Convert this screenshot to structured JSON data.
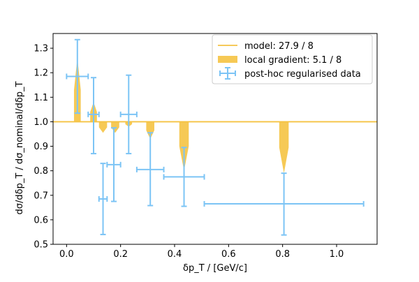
{
  "chart_data": {
    "type": "line",
    "xlabel": "δp_T / [GeV/c]",
    "ylabel": "dσ/dδp_T / dσ_nominal/dδp_T",
    "xlim": [
      -0.05,
      1.15
    ],
    "ylim": [
      0.5,
      1.36
    ],
    "x_ticks": [
      0.0,
      0.2,
      0.4,
      0.6,
      0.8,
      1.0
    ],
    "x_tick_labels": [
      "0.0",
      "0.2",
      "0.4",
      "0.6",
      "0.8",
      "1.0"
    ],
    "y_ticks": [
      0.5,
      0.6,
      0.7,
      0.8,
      0.9,
      1.0,
      1.1,
      1.2,
      1.3
    ],
    "y_tick_labels": [
      "0.5",
      "0.6",
      "0.7",
      "0.8",
      "0.9",
      "1.0",
      "1.1",
      "1.2",
      "1.3"
    ],
    "grid": false,
    "legend_position": "top-right",
    "legend": [
      {
        "label": "model: 27.9 / 8",
        "kind": "line",
        "color": "#f5c342"
      },
      {
        "label": "local gradient: 5.1 / 8",
        "kind": "fill",
        "color": "#f5c342"
      },
      {
        "label": "post-hoc regularised data",
        "kind": "errorbar",
        "color": "#7cc4f5"
      }
    ],
    "model": {
      "name": "model: 27.9 / 8",
      "y": 1.0,
      "color": "#f5c342"
    },
    "local_gradient": {
      "name": "local gradient: 5.1 / 8",
      "color": "#f5c342",
      "spikes": [
        {
          "x": 0.04,
          "width": 0.025,
          "y": 1.26
        },
        {
          "x": 0.1,
          "width": 0.025,
          "y": 1.08
        },
        {
          "x": 0.135,
          "width": 0.03,
          "y": 0.955
        },
        {
          "x": 0.18,
          "width": 0.03,
          "y": 0.955
        },
        {
          "x": 0.23,
          "width": 0.025,
          "y": 0.98
        },
        {
          "x": 0.31,
          "width": 0.03,
          "y": 0.93
        },
        {
          "x": 0.435,
          "width": 0.035,
          "y": 0.8
        },
        {
          "x": 0.805,
          "width": 0.035,
          "y": 0.79
        }
      ]
    },
    "series": [
      {
        "name": "post-hoc regularised data",
        "color": "#7cc4f5",
        "points": [
          {
            "x": 0.04,
            "y": 1.185,
            "xlo": 0.0,
            "xhi": 0.08,
            "ylo": 1.035,
            "yhi": 1.335
          },
          {
            "x": 0.1,
            "y": 1.03,
            "xlo": 0.08,
            "xhi": 0.12,
            "ylo": 0.87,
            "yhi": 1.18
          },
          {
            "x": 0.135,
            "y": 0.685,
            "xlo": 0.12,
            "xhi": 0.15,
            "ylo": 0.54,
            "yhi": 0.83
          },
          {
            "x": 0.175,
            "y": 0.825,
            "xlo": 0.15,
            "xhi": 0.2,
            "ylo": 0.675,
            "yhi": 0.975
          },
          {
            "x": 0.23,
            "y": 1.03,
            "xlo": 0.2,
            "xhi": 0.26,
            "ylo": 0.87,
            "yhi": 1.19
          },
          {
            "x": 0.31,
            "y": 0.805,
            "xlo": 0.26,
            "xhi": 0.36,
            "ylo": 0.658,
            "yhi": 0.955
          },
          {
            "x": 0.435,
            "y": 0.775,
            "xlo": 0.36,
            "xhi": 0.51,
            "ylo": 0.655,
            "yhi": 0.895
          },
          {
            "x": 0.805,
            "y": 0.665,
            "xlo": 0.51,
            "xhi": 1.1,
            "ylo": 0.538,
            "yhi": 0.79
          }
        ]
      }
    ]
  }
}
